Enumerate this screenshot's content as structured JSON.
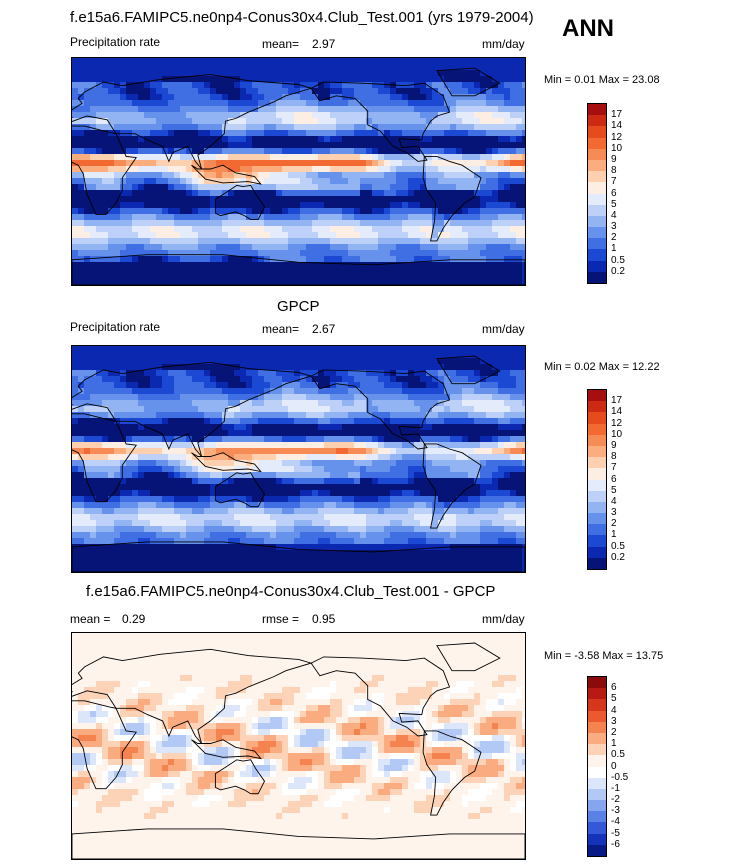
{
  "season": "ANN",
  "panels": [
    {
      "title": "f.e15a6.FAMIPC5.ne0np4-Conus30x4.Club_Test.001 (yrs 1979-2004)",
      "left_label": "Precipitation rate",
      "stat_label": "mean=",
      "stat_value": "2.97",
      "stat2_label": "",
      "stat2_value": "",
      "units": "mm/day",
      "min_max": "Min =   0.01 Max =  23.08",
      "levels": [
        "17",
        "14",
        "12",
        "10",
        "9",
        "8",
        "7",
        "6",
        "5",
        "4",
        "3",
        "2",
        "1",
        "0.5",
        "0.2"
      ],
      "colors": [
        "#a50f0f",
        "#cc2a12",
        "#e54b1c",
        "#f26a32",
        "#f78b55",
        "#fbad7e",
        "#fdd0b0",
        "#fdeee3",
        "#e4ecfb",
        "#bdd1f8",
        "#93b4f2",
        "#6792eb",
        "#3f6fe3",
        "#1c49d4",
        "#0a28b0",
        "#061478"
      ],
      "min": 0.01,
      "max": 23.08
    },
    {
      "title": "GPCP",
      "left_label": "Precipitation rate",
      "stat_label": "mean=",
      "stat_value": "2.67",
      "stat2_label": "",
      "stat2_value": "",
      "units": "mm/day",
      "min_max": "Min =   0.02 Max =  12.22",
      "levels": [
        "17",
        "14",
        "12",
        "10",
        "9",
        "8",
        "7",
        "6",
        "5",
        "4",
        "3",
        "2",
        "1",
        "0.5",
        "0.2"
      ],
      "colors": [
        "#a50f0f",
        "#cc2a12",
        "#e54b1c",
        "#f26a32",
        "#f78b55",
        "#fbad7e",
        "#fdd0b0",
        "#fdeee3",
        "#e4ecfb",
        "#bdd1f8",
        "#93b4f2",
        "#6792eb",
        "#3f6fe3",
        "#1c49d4",
        "#0a28b0",
        "#061478"
      ],
      "min": 0.02,
      "max": 12.22
    },
    {
      "title": "f.e15a6.FAMIPC5.ne0np4-Conus30x4.Club_Test.001 - GPCP",
      "left_label": "",
      "stat_label": "mean =",
      "stat_value": "0.29",
      "stat2_label": "rmse =",
      "stat2_value": "0.95",
      "units": "mm/day",
      "min_max": "Min =  -3.58 Max =  13.75",
      "levels": [
        "6",
        "5",
        "4",
        "3",
        "2",
        "1",
        "0.5",
        "0",
        "-0.5",
        "-1",
        "-2",
        "-3",
        "-4",
        "-5",
        "-6"
      ],
      "colors": [
        "#8b0a0a",
        "#b61a12",
        "#d6361c",
        "#ea5a2e",
        "#f5834f",
        "#fbab80",
        "#fdd3b8",
        "#fff4ec",
        "#ffffff",
        "#dbe6fb",
        "#b3c9f5",
        "#85a6ee",
        "#5a82e6",
        "#3358d8",
        "#1533b8",
        "#071a85"
      ],
      "min": -3.58,
      "max": 13.75
    }
  ]
}
